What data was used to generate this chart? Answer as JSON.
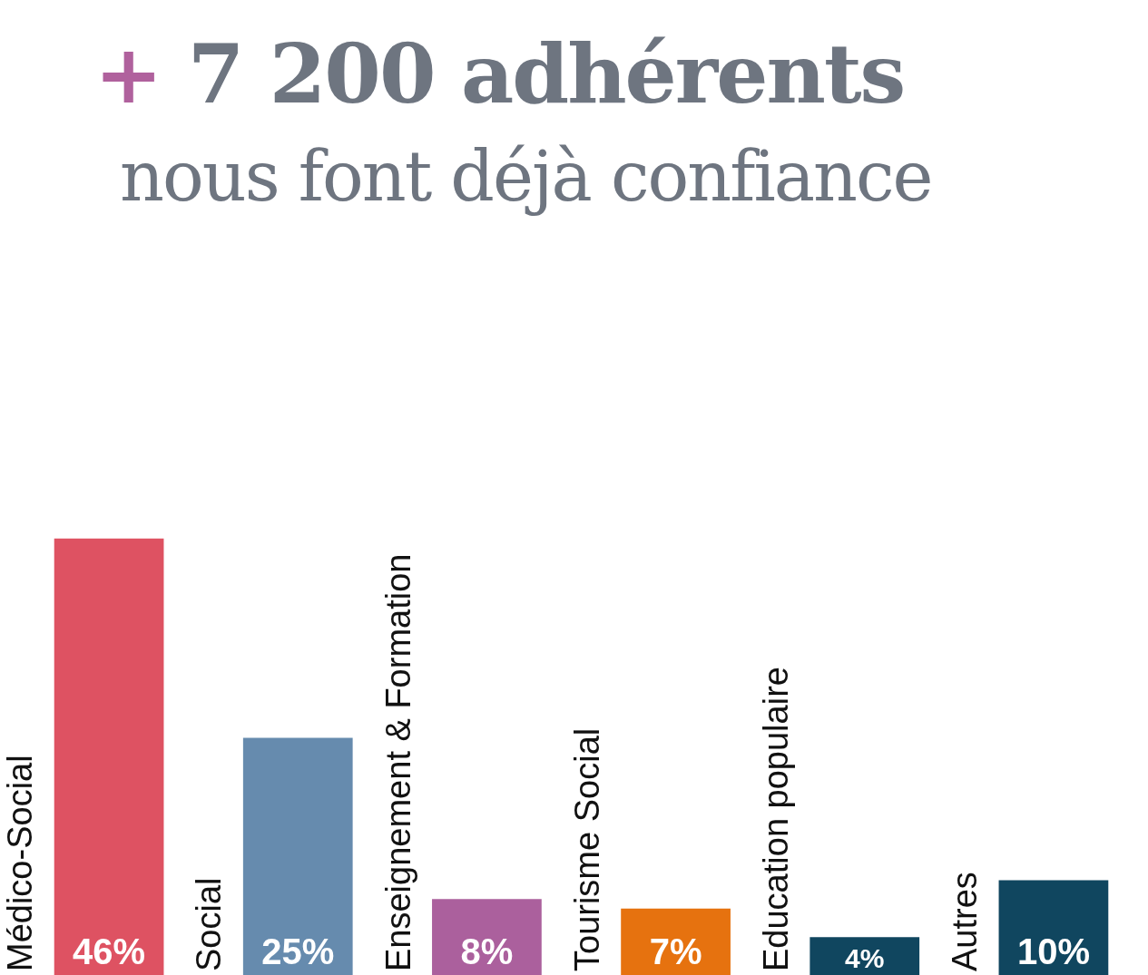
{
  "chart_data": {
    "type": "bar",
    "title": "+ 7 200 adhérents",
    "subtitle": "nous font déjà confiance",
    "categories": [
      "Médico-Social",
      "Social",
      "Enseignement & Formation",
      "Tourisme Social",
      "Education populaire",
      "Autres"
    ],
    "values": [
      46,
      25,
      8,
      7,
      4,
      10
    ],
    "colors": [
      "#de5262",
      "#668bae",
      "#ab609d",
      "#e6720f",
      "#10465f",
      "#10465f"
    ],
    "value_labels": [
      "46%",
      "25%",
      "8%",
      "7%",
      "4%",
      "10%"
    ]
  }
}
